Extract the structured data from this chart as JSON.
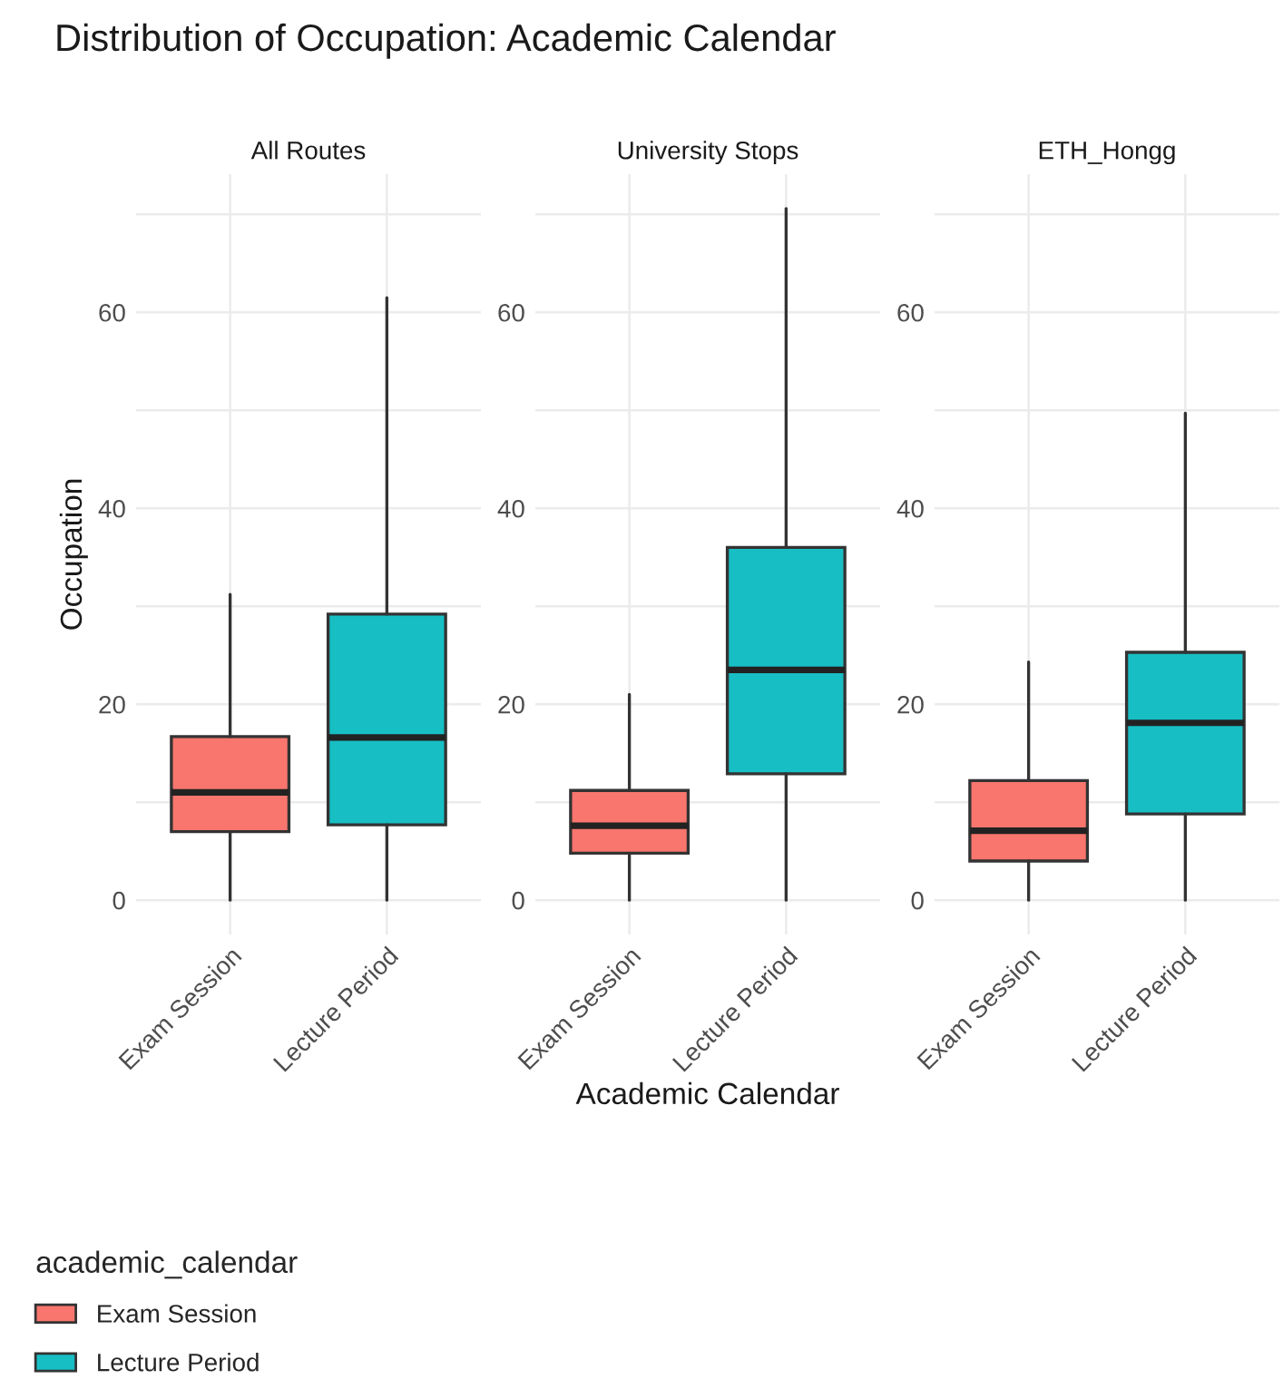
{
  "chart_data": [
    {
      "type": "box",
      "title": "Distribution of Occupation: Academic Calendar",
      "subtitle": "All Routes",
      "ylabel": "Occupation",
      "legend_title": "academic_calendar",
      "legend": "bottom",
      "grid": true,
      "categories": [
        "Exam Session",
        "Lecture Period"
      ],
      "ylim": [
        -3.5,
        74.1
      ],
      "yticks": [
        0,
        {
          "value": 10,
          "label": null
        },
        20,
        {
          "value": 30,
          "label": null
        },
        40,
        {
          "value": 50,
          "label": null
        },
        60,
        {
          "value": 70,
          "label": null
        }
      ],
      "series": [
        {
          "name": "Exam Session",
          "color": "#f8766d",
          "boxes": [
            {
              "low": 0,
              "q1": 7.0,
              "median": 11.0,
              "q3": 16.7,
              "high": 31.2
            },
            null
          ]
        },
        {
          "name": "Lecture Period",
          "color": "#17bec4",
          "boxes": [
            null,
            {
              "low": 0,
              "q1": 7.7,
              "median": 16.6,
              "q3": 29.2,
              "high": 61.5
            }
          ]
        }
      ]
    },
    {
      "type": "box",
      "subtitle": "University Stops",
      "xlabel": "Academic Calendar",
      "grid": true,
      "categories": [
        "Exam Session",
        "Lecture Period"
      ],
      "ylim": [
        -3.5,
        74.1
      ],
      "yticks": [
        0,
        {
          "value": 10,
          "label": null
        },
        20,
        {
          "value": 30,
          "label": null
        },
        40,
        {
          "value": 50,
          "label": null
        },
        60,
        {
          "value": 70,
          "label": null
        }
      ],
      "series": [
        {
          "color": "#f8766d",
          "boxes": [
            {
              "low": 0,
              "q1": 4.8,
              "median": 7.6,
              "q3": 11.2,
              "high": 21.0
            },
            null
          ]
        },
        {
          "color": "#17bec4",
          "boxes": [
            null,
            {
              "low": 0,
              "q1": 12.9,
              "median": 23.5,
              "q3": 36.0,
              "high": 70.6
            }
          ]
        }
      ]
    },
    {
      "type": "box",
      "subtitle": "ETH_Hongg",
      "grid": true,
      "categories": [
        "Exam Session",
        "Lecture Period"
      ],
      "ylim": [
        -3.5,
        74.1
      ],
      "yticks": [
        0,
        {
          "value": 10,
          "label": null
        },
        20,
        {
          "value": 30,
          "label": null
        },
        40,
        {
          "value": 50,
          "label": null
        },
        60,
        {
          "value": 70,
          "label": null
        }
      ],
      "series": [
        {
          "color": "#f8766d",
          "boxes": [
            {
              "low": 0,
              "q1": 4.0,
              "median": 7.1,
              "q3": 12.2,
              "high": 24.3
            },
            null
          ]
        },
        {
          "color": "#17bec4",
          "boxes": [
            null,
            {
              "low": 0,
              "q1": 8.8,
              "median": 18.1,
              "q3": 25.3,
              "high": 49.7
            }
          ]
        }
      ]
    }
  ]
}
